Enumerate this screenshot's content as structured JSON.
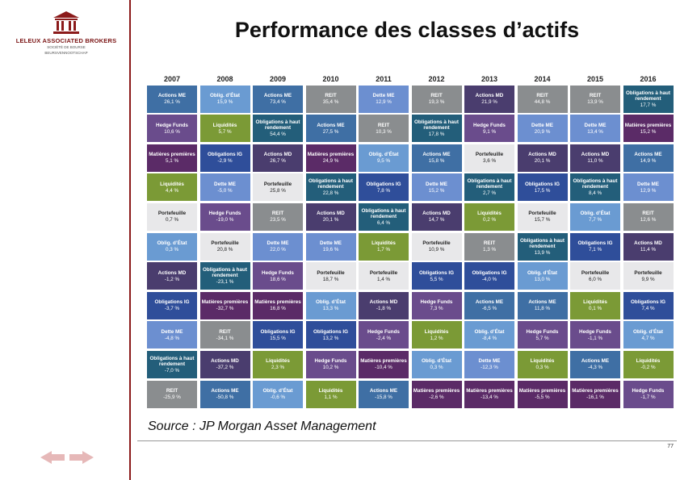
{
  "logo": {
    "name": "LELEUX ASSOCIATED BROKERS",
    "line1": "SOCIÉTÉ DE BOURSE",
    "line2": "BEURSVENNOOTSCHAP"
  },
  "title": "Performance des classes d’actifs",
  "colors": {
    "Actions ME": "#3f6fa4",
    "Oblig. d’État": "#6a9bd2",
    "Actions MD": "#4a3d6e",
    "REIT": "#8a8d8f",
    "Dette ME": "#6c8fd0",
    "Hedge Funds": "#6a4c8c",
    "Liquidités": "#7b9a36",
    "Obligations à haut rendement": "#235e7a",
    "Matières premières": "#5b2b67",
    "Obligations IG": "#2f4e9a",
    "Portefeuille": "#e8e8ea"
  },
  "years": [
    "2007",
    "2008",
    "2009",
    "2010",
    "2011",
    "2012",
    "2013",
    "2014",
    "2015",
    "2016"
  ],
  "table": [
    [
      [
        "Actions ME",
        "26,1 %"
      ],
      [
        "Oblig. d’État",
        "15,9 %"
      ],
      [
        "Actions ME",
        "73,4 %"
      ],
      [
        "REIT",
        "35,4 %"
      ],
      [
        "Dette ME",
        "12,9 %"
      ],
      [
        "REIT",
        "19,3 %"
      ],
      [
        "Actions MD",
        "21,9 %"
      ],
      [
        "REIT",
        "44,8 %"
      ],
      [
        "REIT",
        "13,9 %"
      ],
      [
        "Obligations à haut rendement",
        "17,7 %"
      ]
    ],
    [
      [
        "Hedge Funds",
        "10,6 %"
      ],
      [
        "Liquidités",
        "5,7 %"
      ],
      [
        "Obligations à haut rendement",
        "54,4 %"
      ],
      [
        "Actions ME",
        "27,5 %"
      ],
      [
        "REIT",
        "10,3 %"
      ],
      [
        "Obligations à haut rendement",
        "17,8 %"
      ],
      [
        "Hedge Funds",
        "9,1 %"
      ],
      [
        "Dette ME",
        "20,9 %"
      ],
      [
        "Dette ME",
        "13,4 %"
      ],
      [
        "Matières premières",
        "15,2 %"
      ]
    ],
    [
      [
        "Matières premières",
        "5,1 %"
      ],
      [
        "Obligations IG",
        "-2,9 %"
      ],
      [
        "Actions MD",
        "26,7 %"
      ],
      [
        "Matières premières",
        "24,9 %"
      ],
      [
        "Oblig. d’État",
        "9,5 %"
      ],
      [
        "Actions ME",
        "15,8 %"
      ],
      [
        "Portefeuille",
        "3,6 %"
      ],
      [
        "Actions MD",
        "20,1 %"
      ],
      [
        "Actions MD",
        "11,0 %"
      ],
      [
        "Actions ME",
        "14,9 %"
      ]
    ],
    [
      [
        "Liquidités",
        "4,4 %"
      ],
      [
        "Dette ME",
        "-5,0 %"
      ],
      [
        "Portefeuille",
        "25,8 %"
      ],
      [
        "Obligations à haut rendement",
        "22,8 %"
      ],
      [
        "Obligations IG",
        "7,8 %"
      ],
      [
        "Dette ME",
        "15,2 %"
      ],
      [
        "Obligations à haut rendement",
        "2,7 %"
      ],
      [
        "Obligations IG",
        "17,5 %"
      ],
      [
        "Obligations à haut rendement",
        "8,4 %"
      ],
      [
        "Dette ME",
        "12,9 %"
      ]
    ],
    [
      [
        "Portefeuille",
        "0,7 %"
      ],
      [
        "Hedge Funds",
        "-19,0 %"
      ],
      [
        "REIT",
        "23,5 %"
      ],
      [
        "Actions MD",
        "20,1 %"
      ],
      [
        "Obligations à haut rendement",
        "6,4 %"
      ],
      [
        "Actions MD",
        "14,7 %"
      ],
      [
        "Liquidités",
        "0,2 %"
      ],
      [
        "Portefeuille",
        "15,7 %"
      ],
      [
        "Oblig. d’État",
        "7,7 %"
      ],
      [
        "REIT",
        "12,6 %"
      ]
    ],
    [
      [
        "Oblig. d’État",
        "0,3 %"
      ],
      [
        "Portefeuille",
        "20,8 %"
      ],
      [
        "Dette ME",
        "22,0 %"
      ],
      [
        "Dette ME",
        "19,6 %"
      ],
      [
        "Liquidités",
        "1,7 %"
      ],
      [
        "Portefeuille",
        "10,9 %"
      ],
      [
        "REIT",
        "1,3 %"
      ],
      [
        "Obligations à haut rendement",
        "13,9 %"
      ],
      [
        "Obligations IG",
        "7,1 %"
      ],
      [
        "Actions MD",
        "11,4 %"
      ]
    ],
    [
      [
        "Actions MD",
        "-1,2 %"
      ],
      [
        "Obligations à haut rendement",
        "-23,1 %"
      ],
      [
        "Hedge Funds",
        "18,6 %"
      ],
      [
        "Portefeuille",
        "18,7 %"
      ],
      [
        "Portefeuille",
        "1,4 %"
      ],
      [
        "Obligations IG",
        "5,5 %"
      ],
      [
        "Obligations IG",
        "-4,0 %"
      ],
      [
        "Oblig. d’État",
        "13,0 %"
      ],
      [
        "Portefeuille",
        "6,0 %"
      ],
      [
        "Portefeuille",
        "9,9 %"
      ]
    ],
    [
      [
        "Obligations IG",
        "-3,7 %"
      ],
      [
        "Matières premières",
        "-32,7 %"
      ],
      [
        "Matières premières",
        "16,8 %"
      ],
      [
        "Oblig. d’État",
        "13,3 %"
      ],
      [
        "Actions MD",
        "-1,8 %"
      ],
      [
        "Hedge Funds",
        "7,3 %"
      ],
      [
        "Actions ME",
        "-6,5 %"
      ],
      [
        "Actions ME",
        "11,8 %"
      ],
      [
        "Liquidités",
        "0,1 %"
      ],
      [
        "Obligations IG",
        "7,4 %"
      ]
    ],
    [
      [
        "Dette ME",
        "-4,8 %"
      ],
      [
        "REIT",
        "-34,1 %"
      ],
      [
        "Obligations IG",
        "15,5 %"
      ],
      [
        "Obligations IG",
        "13,2 %"
      ],
      [
        "Hedge Funds",
        "-2,4 %"
      ],
      [
        "Liquidités",
        "1,2 %"
      ],
      [
        "Oblig. d’État",
        "-8,4 %"
      ],
      [
        "Hedge Funds",
        "5,7 %"
      ],
      [
        "Hedge Funds",
        "-1,1 %"
      ],
      [
        "Oblig. d’État",
        "4,7 %"
      ]
    ],
    [
      [
        "Obligations à haut rendement",
        "-7,0 %"
      ],
      [
        "Actions MD",
        "-37,2 %"
      ],
      [
        "Liquidités",
        "2,3 %"
      ],
      [
        "Hedge Funds",
        "10,2 %"
      ],
      [
        "Matières premières",
        "-10,4 %"
      ],
      [
        "Oblig. d’État",
        "0,3 %"
      ],
      [
        "Dette ME",
        "-12,3 %"
      ],
      [
        "Liquidités",
        "0,3 %"
      ],
      [
        "Actions ME",
        "-4,3 %"
      ],
      [
        "Liquidités",
        "-0,2 %"
      ]
    ],
    [
      [
        "REIT",
        "-25,9 %"
      ],
      [
        "Actions ME",
        "-50,8 %"
      ],
      [
        "Oblig. d’État",
        "-0,6 %"
      ],
      [
        "Liquidités",
        "1,1 %"
      ],
      [
        "Actions ME",
        "-15,8 %"
      ],
      [
        "Matières premières",
        "-2,6 %"
      ],
      [
        "Matières premières",
        "-13,4 %"
      ],
      [
        "Matières premières",
        "-5,5 %"
      ],
      [
        "Matières premières",
        "-16,1 %"
      ],
      [
        "Hedge Funds",
        "-1,7 %"
      ]
    ]
  ],
  "source": "Source : JP Morgan Asset Management",
  "page_number": "77"
}
